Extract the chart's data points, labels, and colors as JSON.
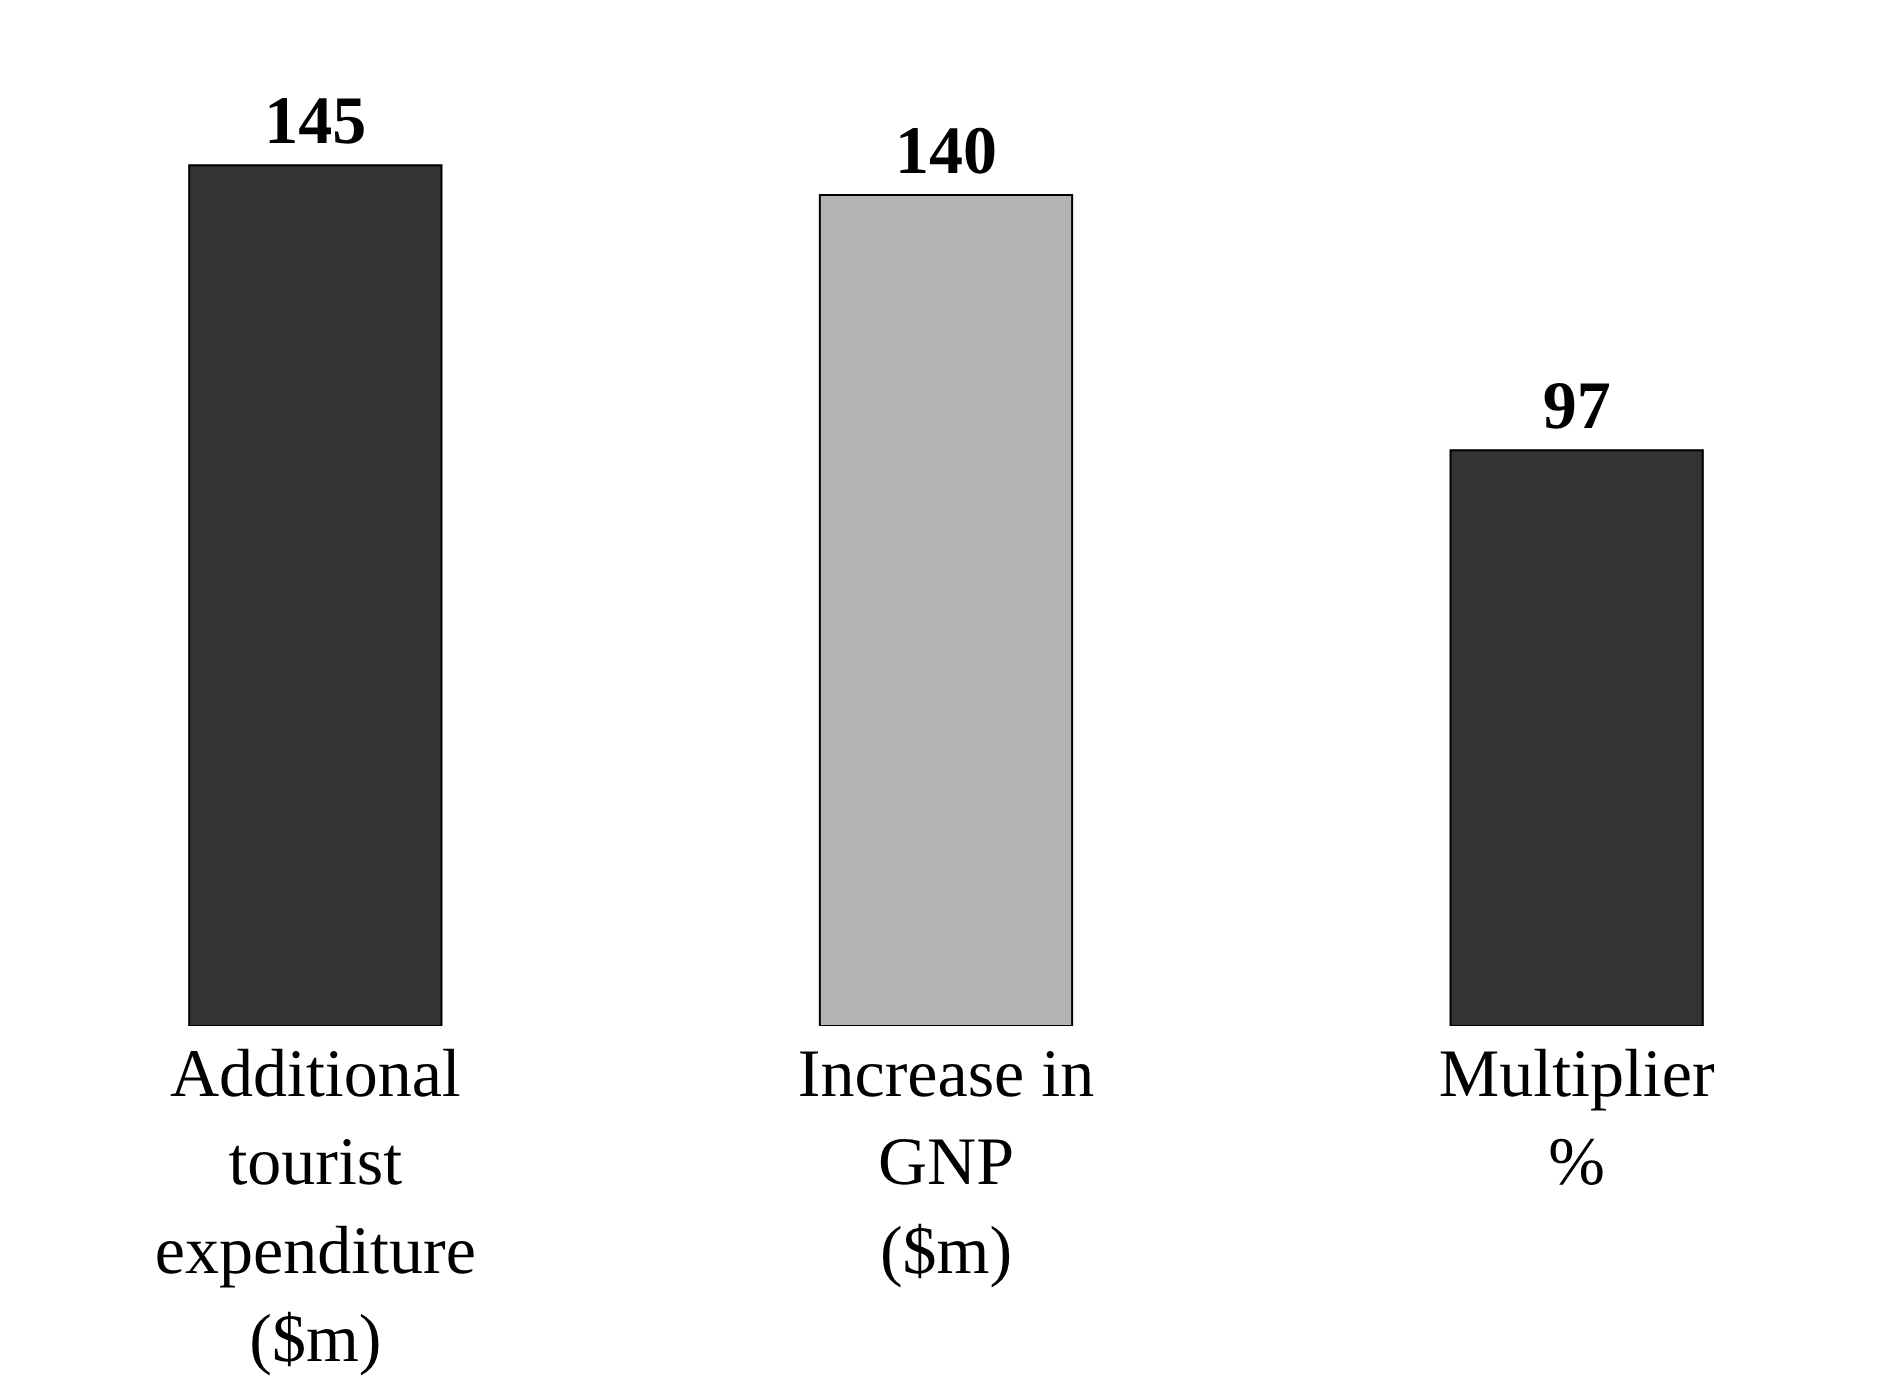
{
  "chart_data": {
    "type": "bar",
    "categories": [
      "Additional\ntourist\nexpenditure\n($m)",
      "Increase in\nGNP\n($m)",
      "Multiplier\n%"
    ],
    "values": [
      145,
      140,
      97
    ],
    "colors": [
      "#333333",
      "#b3b3b3",
      "#333333"
    ],
    "data_labels": true
  }
}
